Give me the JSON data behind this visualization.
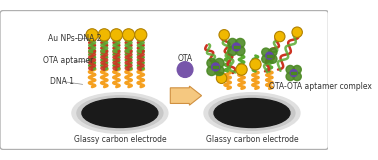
{
  "bg_color": "#ffffff",
  "border_color": "#b0b0b0",
  "electrode_color": "#1a1a1a",
  "electrode_rim_color": "#c8c8c8",
  "electrode_rim_outer": "#e0e0e0",
  "gold_np_color": "#f0b800",
  "gold_np_edge": "#b08000",
  "dna1_color": "#f5a020",
  "aptamer_green_color": "#5aaa30",
  "dna2_red_color": "#cc3322",
  "ota_color": "#7755aa",
  "arrow_color": "#f5c880",
  "arrow_edge": "#d09040",
  "complex_green": "#4a8822",
  "complex_purple": "#6644aa",
  "labels": {
    "au_nps": "Au NPs-DNA 2",
    "ota_aptamer": "OTA aptamer",
    "dna1": "DNA 1",
    "electrode": "Glassy carbon electrode",
    "ota": "OTA",
    "complex": "OTA-OTA aptamer complex"
  },
  "label_fontsize": 5.5,
  "text_color": "#333333"
}
